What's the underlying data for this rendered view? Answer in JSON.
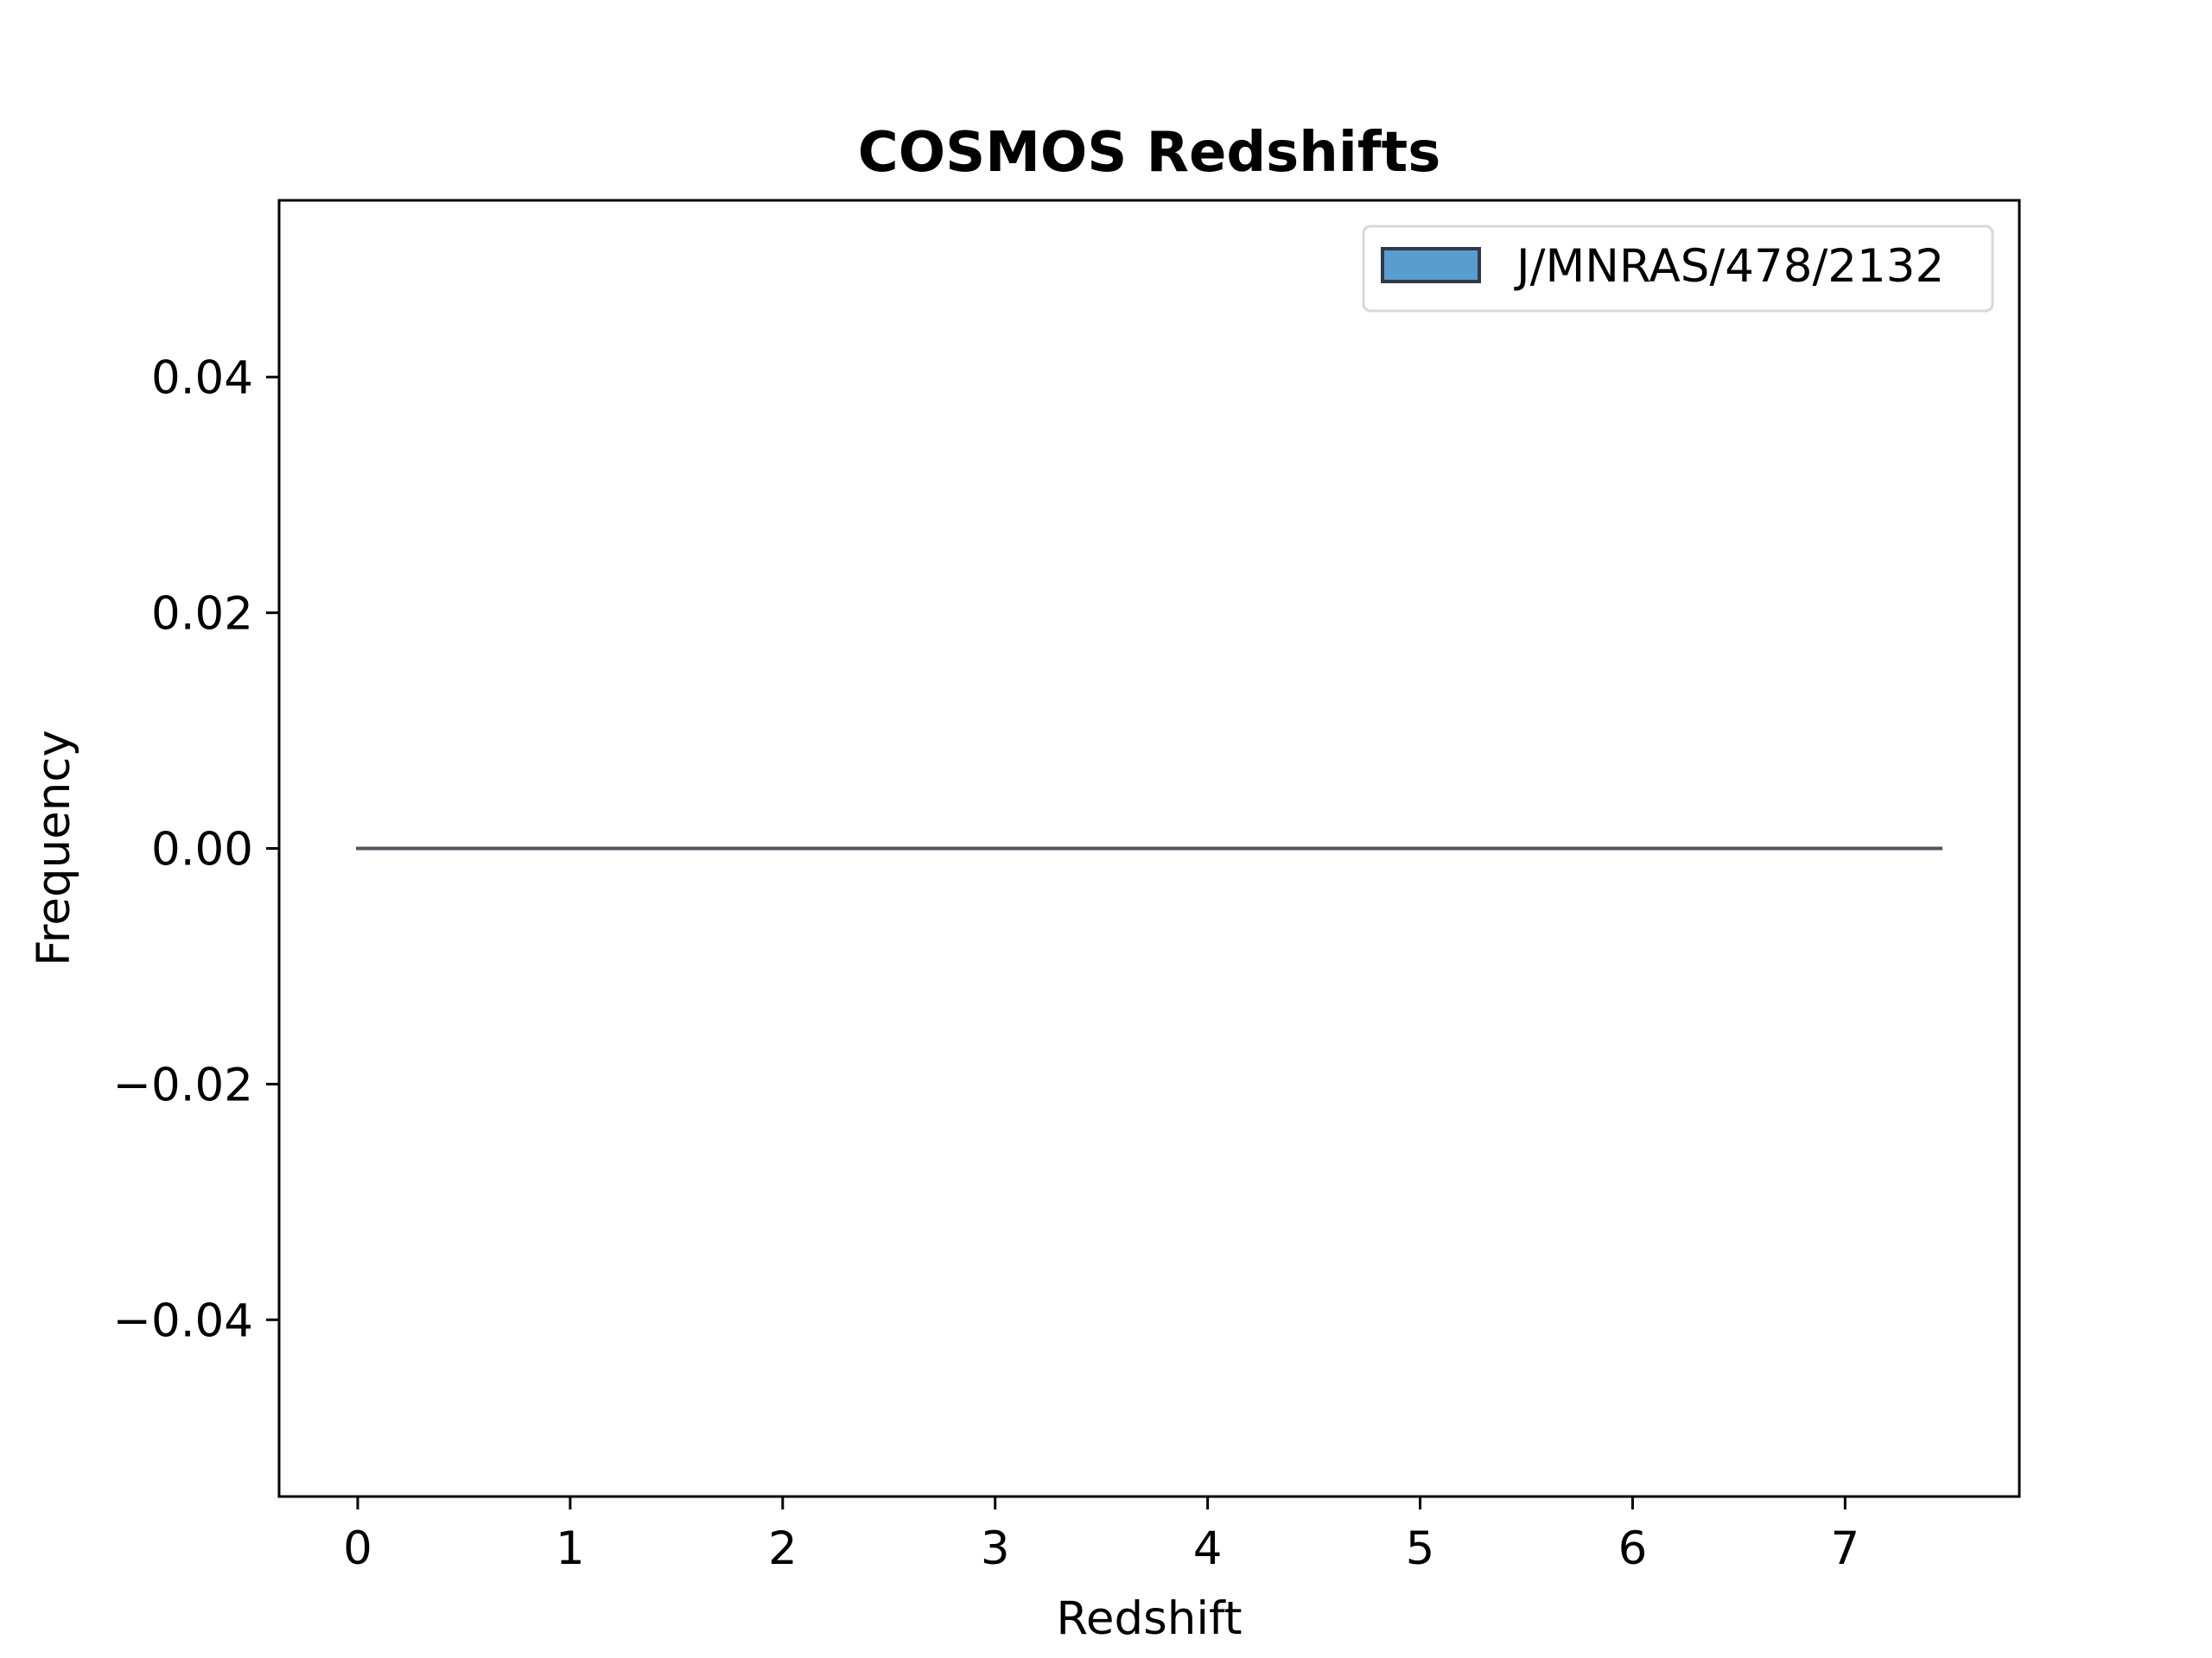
{
  "chart_data": {
    "type": "bar",
    "title": "COSMOS Redshifts",
    "xlabel": "Redshift",
    "ylabel": "Frequency",
    "xlim": [
      -0.37,
      7.82
    ],
    "ylim": [
      -0.055,
      0.055
    ],
    "xticks": [
      0,
      1,
      2,
      3,
      4,
      5,
      6,
      7
    ],
    "xtick_labels": [
      "0",
      "1",
      "2",
      "3",
      "4",
      "5",
      "6",
      "7"
    ],
    "yticks": [
      0.04,
      0.02,
      0.0,
      -0.02,
      -0.04
    ],
    "ytick_labels": [
      "0.04",
      "0.02",
      "0.00",
      "−0.02",
      "−0.04"
    ],
    "grid": false,
    "legend_position": "top-right",
    "series": [
      {
        "name": "J/MNRAS/478/2132",
        "color": "#5b9ccf",
        "edge_color": "#2f3a46",
        "bin_range": [
          0,
          7.45
        ],
        "values": [
          0
        ]
      }
    ]
  }
}
